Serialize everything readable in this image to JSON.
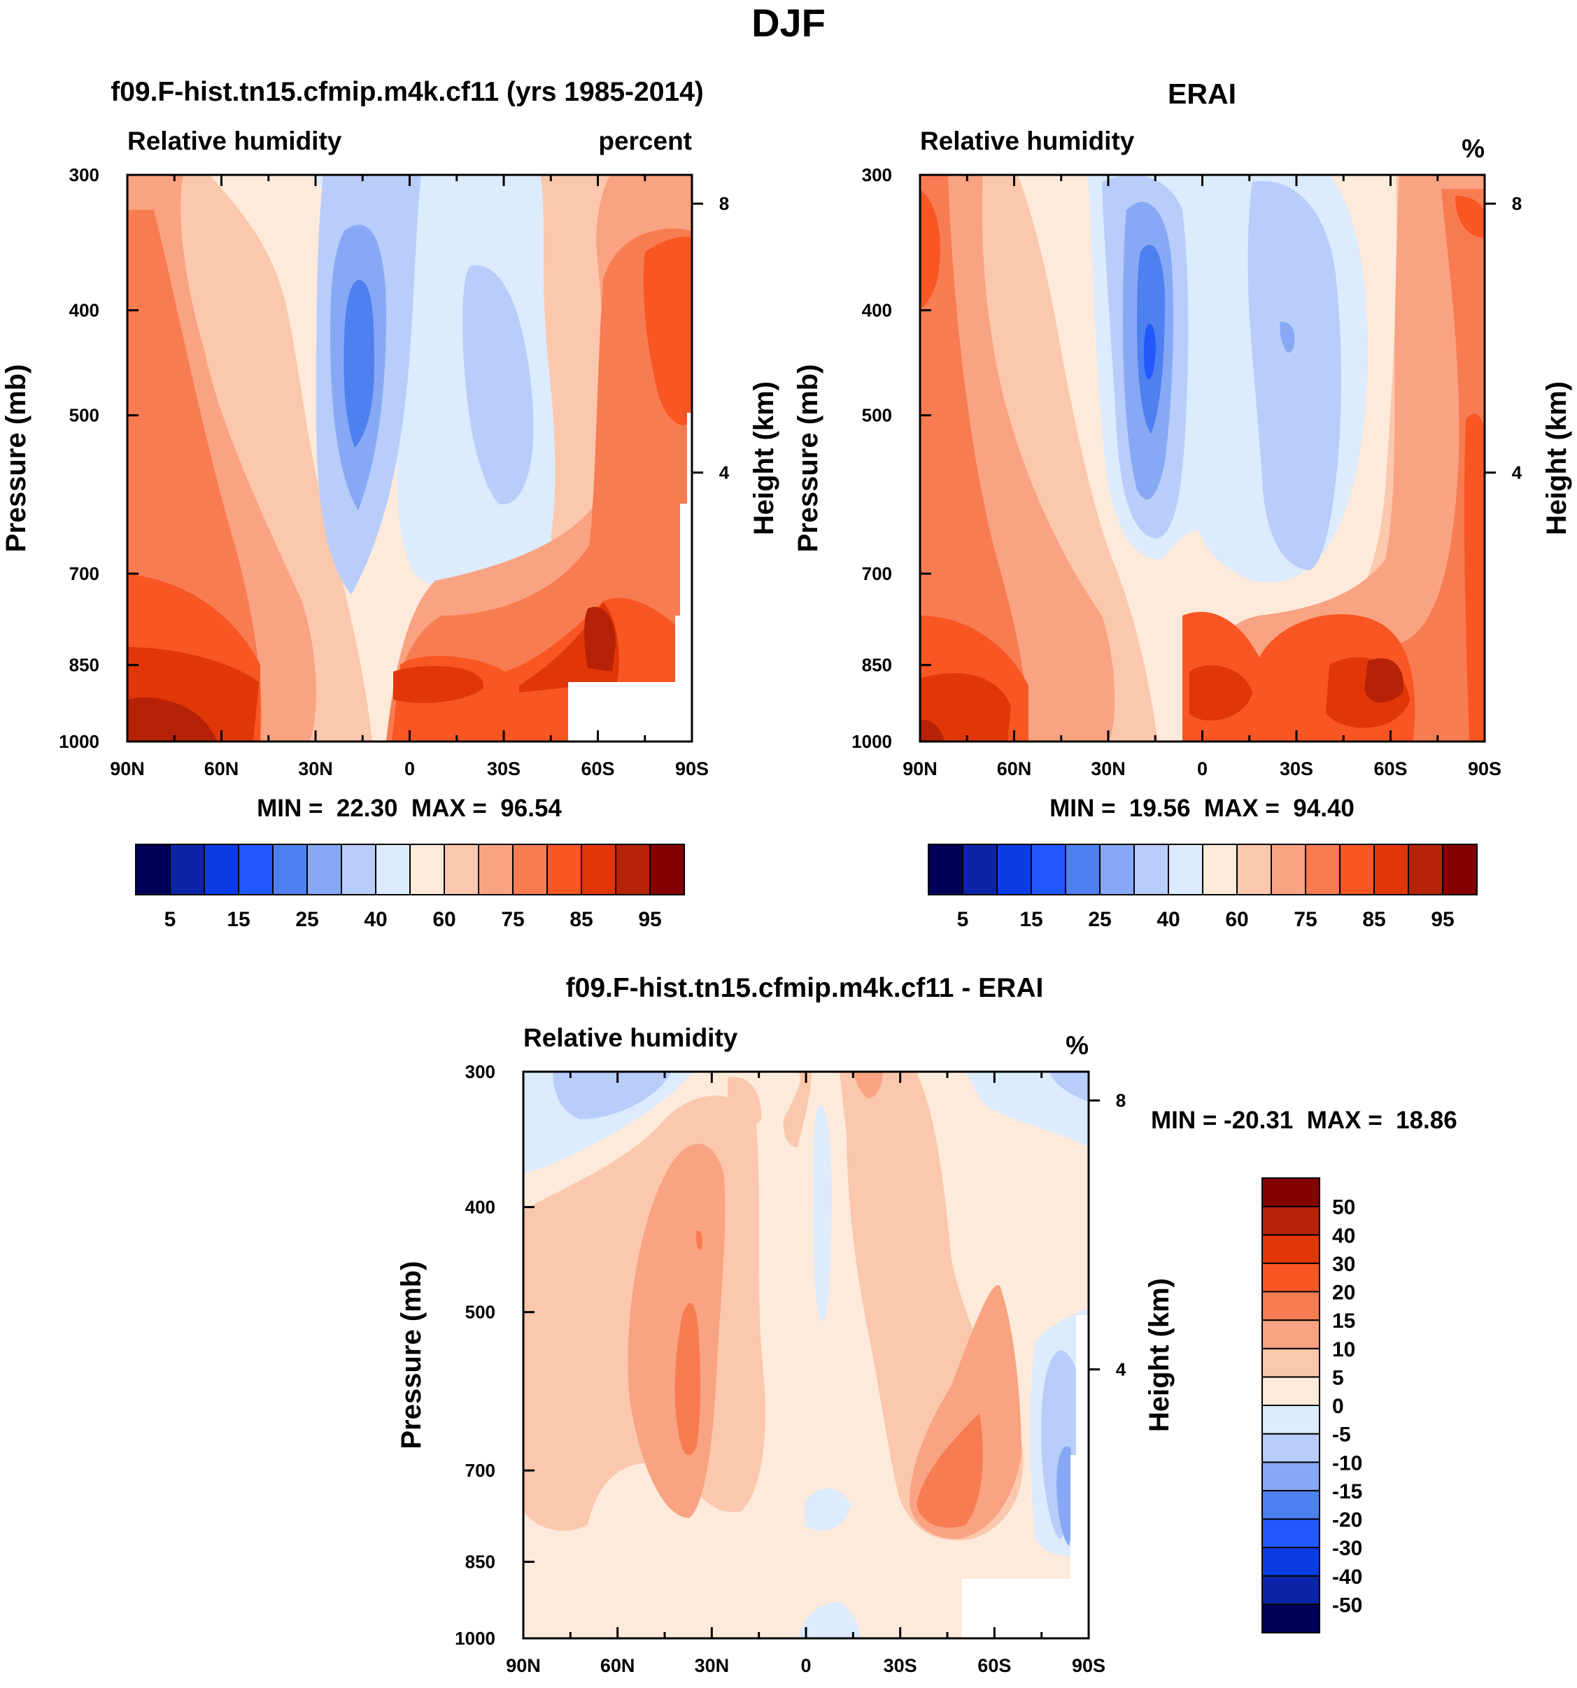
{
  "figure_title": "DJF",
  "chart_data": [
    {
      "type": "heatmap",
      "title": "f09.F-hist.tn15.cfmip.m4k.cf11 (yrs 1985-2014)",
      "left_label": "Relative humidity",
      "right_label": "percent",
      "ylabel": "Pressure (mb)",
      "ylabel2": "Height (km)",
      "x_ticks": [
        "90N",
        "60N",
        "30N",
        "0",
        "30S",
        "60S",
        "90S"
      ],
      "x_range": [
        90,
        -90
      ],
      "y_ticks": [
        "300",
        "400",
        "500",
        "700",
        "850",
        "1000"
      ],
      "y_range": [
        300,
        1000
      ],
      "y2_ticks": [
        "8",
        "4"
      ],
      "stats": "MIN =  22.30  MAX =  96.54",
      "min": 22.3,
      "max": 96.54,
      "colorbar": {
        "orientation": "horizontal",
        "colors": [
          "#00005a",
          "#0b24a8",
          "#0a3ce6",
          "#2158ff",
          "#4f80f0",
          "#87a9f5",
          "#b9cdfb",
          "#dcebfd",
          "#fdeadb",
          "#fbc8ad",
          "#f9a382",
          "#f87c52",
          "#f85623",
          "#e13607",
          "#b52208",
          "#840000"
        ],
        "labels": [
          "5",
          "15",
          "25",
          "40",
          "60",
          "75",
          "85",
          "95"
        ]
      }
    },
    {
      "type": "heatmap",
      "title": "ERAI",
      "left_label": "Relative humidity",
      "right_label": "%",
      "ylabel": "Pressure (mb)",
      "ylabel2": "Height (km)",
      "x_ticks": [
        "90N",
        "60N",
        "30N",
        "0",
        "30S",
        "60S",
        "90S"
      ],
      "x_range": [
        90,
        -90
      ],
      "y_ticks": [
        "300",
        "400",
        "500",
        "700",
        "850",
        "1000"
      ],
      "y_range": [
        300,
        1000
      ],
      "y2_ticks": [
        "8",
        "4"
      ],
      "stats": "MIN =  19.56  MAX =  94.40",
      "min": 19.56,
      "max": 94.4,
      "colorbar": {
        "orientation": "horizontal",
        "colors": [
          "#00005a",
          "#0b24a8",
          "#0a3ce6",
          "#2158ff",
          "#4f80f0",
          "#87a9f5",
          "#b9cdfb",
          "#dcebfd",
          "#fdeadb",
          "#fbc8ad",
          "#f9a382",
          "#f87c52",
          "#f85623",
          "#e13607",
          "#b52208",
          "#840000"
        ],
        "labels": [
          "5",
          "15",
          "25",
          "40",
          "60",
          "75",
          "85",
          "95"
        ]
      }
    },
    {
      "type": "heatmap",
      "title": "f09.F-hist.tn15.cfmip.m4k.cf11 - ERAI",
      "left_label": "Relative humidity",
      "right_label": "%",
      "ylabel": "Pressure (mb)",
      "ylabel2": "Height (km)",
      "x_ticks": [
        "90N",
        "60N",
        "30N",
        "0",
        "30S",
        "60S",
        "90S"
      ],
      "x_range": [
        90,
        -90
      ],
      "y_ticks": [
        "300",
        "400",
        "500",
        "700",
        "850",
        "1000"
      ],
      "y_range": [
        300,
        1000
      ],
      "y2_ticks": [
        "8",
        "4"
      ],
      "stats": "MIN = -20.31  MAX =  18.86",
      "min": -20.31,
      "max": 18.86,
      "colorbar": {
        "orientation": "vertical",
        "colors": [
          "#00005a",
          "#0b24a8",
          "#0a3ce6",
          "#2158ff",
          "#4f80f0",
          "#87a9f5",
          "#b9cdfb",
          "#dcebfd",
          "#fdeadb",
          "#fbc8ad",
          "#f9a382",
          "#f87c52",
          "#f85623",
          "#e13607",
          "#b52208",
          "#840000"
        ],
        "labels": [
          "-50",
          "-40",
          "-30",
          "-20",
          "-15",
          "-10",
          "-5",
          "0",
          "5",
          "10",
          "15",
          "20",
          "30",
          "40",
          "50"
        ]
      }
    }
  ]
}
